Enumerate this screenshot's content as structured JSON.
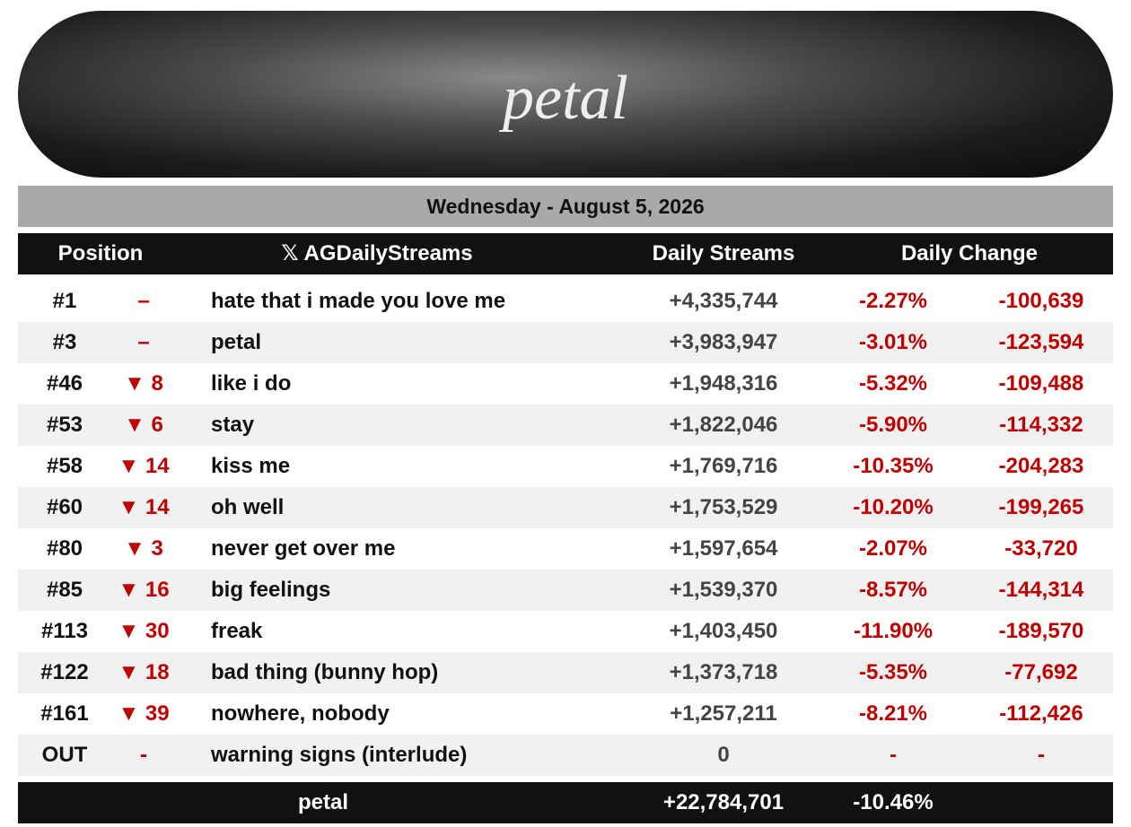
{
  "banner": {
    "logo": "petal"
  },
  "date": "Wednesday - August 5, 2026",
  "table": {
    "columns": [
      "Position",
      "𝕏 AGDailyStreams",
      "Daily Streams",
      "Daily Change"
    ],
    "rows": [
      [
        "#1",
        "–",
        "hate that i made you love me",
        "+4,335,744",
        "-2.27%",
        "-100,639"
      ],
      [
        "#3",
        "–",
        "petal",
        "+3,983,947",
        "-3.01%",
        "-123,594"
      ],
      [
        "#46",
        "▼ 8",
        "like i do",
        "+1,948,316",
        "-5.32%",
        "-109,488"
      ],
      [
        "#53",
        "▼ 6",
        "stay",
        "+1,822,046",
        "-5.90%",
        "-114,332"
      ],
      [
        "#58",
        "▼ 14",
        "kiss me",
        "+1,769,716",
        "-10.35%",
        "-204,283"
      ],
      [
        "#60",
        "▼ 14",
        "oh well",
        "+1,753,529",
        "-10.20%",
        "-199,265"
      ],
      [
        "#80",
        "▼ 3",
        "never get over me",
        "+1,597,654",
        "-2.07%",
        "-33,720"
      ],
      [
        "#85",
        "▼ 16",
        "big feelings",
        "+1,539,370",
        "-8.57%",
        "-144,314"
      ],
      [
        "#113",
        "▼ 30",
        "freak",
        "+1,403,450",
        "-11.90%",
        "-189,570"
      ],
      [
        "#122",
        "▼ 18",
        "bad thing (bunny hop)",
        "+1,373,718",
        "-5.35%",
        "-77,692"
      ],
      [
        "#161",
        "▼ 39",
        "nowhere, nobody",
        "+1,257,211",
        "-8.21%",
        "-112,426"
      ],
      [
        "OUT",
        "-",
        "warning signs (interlude)",
        "0",
        "-",
        "-"
      ]
    ],
    "footer": [
      "petal",
      "+22,784,701",
      "-10.46%"
    ]
  }
}
